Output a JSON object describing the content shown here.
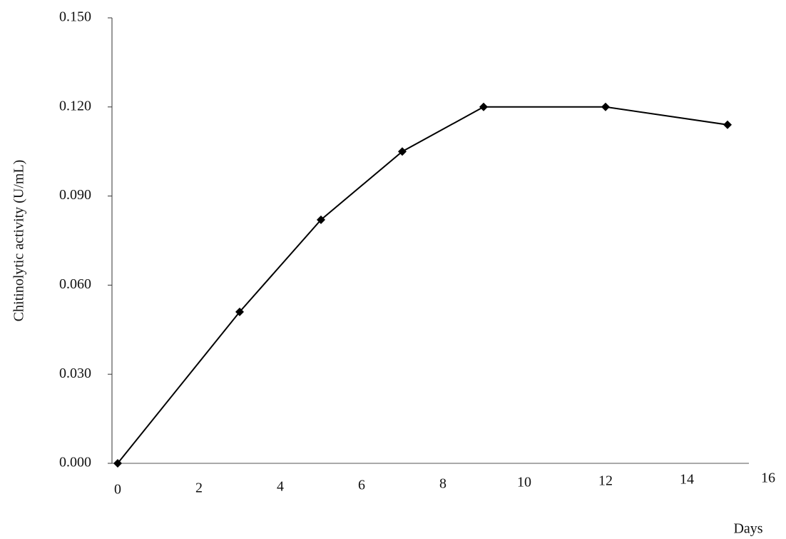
{
  "chart_data": {
    "type": "line",
    "x_label": "Days",
    "y_label": "Chitinolytic activity (U/mL)",
    "x": [
      0,
      3,
      5,
      7,
      9,
      12,
      15
    ],
    "series": [
      {
        "color": "#000000",
        "values": [
          0,
          0.051,
          0.082,
          0.105,
          0.12,
          0.12,
          0.114
        ]
      }
    ],
    "xlim": [
      0,
      16
    ],
    "xticks": [
      0,
      2,
      4,
      6,
      8,
      10,
      12,
      14,
      16
    ],
    "ylim": [
      0,
      0.15
    ],
    "yticks": [
      {
        "value": 0,
        "label": "0.000"
      },
      {
        "value": 0.03,
        "label": "0.030"
      },
      {
        "value": 0.06,
        "label": "0.060"
      },
      {
        "value": 0.09,
        "label": "0.090"
      },
      {
        "value": 0.12,
        "label": "0.120"
      },
      {
        "value": 0.15,
        "label": "0.150"
      }
    ]
  }
}
